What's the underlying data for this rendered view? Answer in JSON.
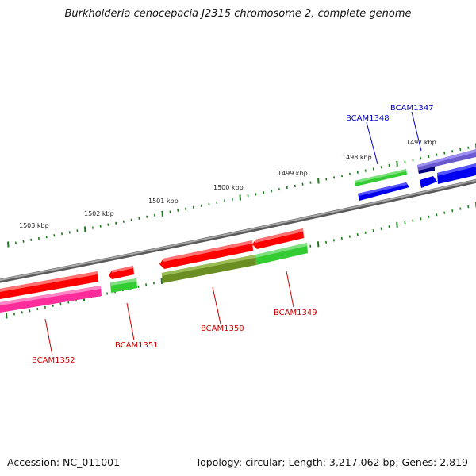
{
  "title": "Burkholderia cenocepacia J2315 chromosome 2, complete genome",
  "footer": {
    "accession": "Accession: NC_011001",
    "summary": "Topology: circular; Length: 3,217,062 bp; Genes: 2,819"
  },
  "colors": {
    "backbone": "#7a7a7a",
    "tick": "#1e7a1e",
    "forward_label": "#0000cc",
    "reverse_label": "#cc0000",
    "red": "#ff0000",
    "green": "#33cc33",
    "blue": "#0000ee",
    "magenta": "#ff2d9b",
    "olive": "#6b8e23",
    "purple": "#6a5acd",
    "navy": "#000080"
  },
  "kbp_labels": [
    "1497 kbp",
    "1498 kbp",
    "1499 kbp",
    "1500 kbp",
    "1501 kbp",
    "1502 kbp",
    "1503 kbp"
  ],
  "gene_labels": [
    {
      "name": "BCAM1347",
      "strand": "forward"
    },
    {
      "name": "BCAM1348",
      "strand": "forward"
    },
    {
      "name": "BCAM1349",
      "strand": "reverse"
    },
    {
      "name": "BCAM1350",
      "strand": "reverse"
    },
    {
      "name": "BCAM1351",
      "strand": "reverse"
    },
    {
      "name": "BCAM1352",
      "strand": "reverse"
    }
  ]
}
